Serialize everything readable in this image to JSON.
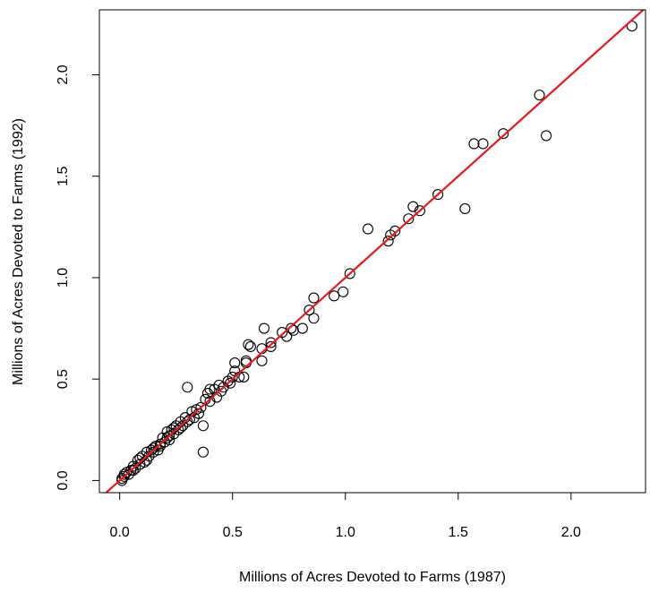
{
  "chart_data": {
    "type": "scatter",
    "title": "",
    "xlabel": "Millions of Acres Devoted to Farms (1987)",
    "ylabel": "Millions of Acres Devoted to Farms (1992)",
    "xlim": [
      -0.09,
      2.33
    ],
    "ylim": [
      -0.06,
      2.32
    ],
    "xticks": [
      0.0,
      0.5,
      1.0,
      1.5,
      2.0
    ],
    "xtick_labels": [
      "0.0",
      "0.5",
      "1.0",
      "1.5",
      "2.0"
    ],
    "yticks": [
      0.0,
      0.5,
      1.0,
      1.5,
      2.0
    ],
    "ytick_labels": [
      "0.0",
      "0.5",
      "1.0",
      "1.5",
      "2.0"
    ],
    "grid": false,
    "fit_line": {
      "intercept": 0.0,
      "slope": 1.0,
      "color": "#e41a1c"
    },
    "point_color": "#000000",
    "points": [
      [
        2.27,
        2.24
      ],
      [
        1.86,
        1.9
      ],
      [
        1.89,
        1.7
      ],
      [
        1.7,
        1.71
      ],
      [
        1.61,
        1.66
      ],
      [
        1.57,
        1.66
      ],
      [
        1.53,
        1.34
      ],
      [
        1.41,
        1.41
      ],
      [
        1.33,
        1.33
      ],
      [
        1.3,
        1.35
      ],
      [
        1.28,
        1.29
      ],
      [
        1.22,
        1.23
      ],
      [
        1.2,
        1.21
      ],
      [
        1.19,
        1.18
      ],
      [
        1.1,
        1.24
      ],
      [
        1.02,
        1.02
      ],
      [
        0.99,
        0.93
      ],
      [
        0.95,
        0.91
      ],
      [
        0.86,
        0.9
      ],
      [
        0.86,
        0.8
      ],
      [
        0.84,
        0.84
      ],
      [
        0.81,
        0.75
      ],
      [
        0.77,
        0.74
      ],
      [
        0.76,
        0.75
      ],
      [
        0.74,
        0.71
      ],
      [
        0.72,
        0.73
      ],
      [
        0.67,
        0.68
      ],
      [
        0.67,
        0.66
      ],
      [
        0.64,
        0.75
      ],
      [
        0.63,
        0.65
      ],
      [
        0.63,
        0.59
      ],
      [
        0.58,
        0.66
      ],
      [
        0.57,
        0.67
      ],
      [
        0.56,
        0.59
      ],
      [
        0.56,
        0.58
      ],
      [
        0.55,
        0.51
      ],
      [
        0.53,
        0.51
      ],
      [
        0.51,
        0.58
      ],
      [
        0.51,
        0.54
      ],
      [
        0.5,
        0.51
      ],
      [
        0.49,
        0.48
      ],
      [
        0.48,
        0.49
      ],
      [
        0.46,
        0.46
      ],
      [
        0.45,
        0.44
      ],
      [
        0.44,
        0.47
      ],
      [
        0.43,
        0.41
      ],
      [
        0.42,
        0.45
      ],
      [
        0.4,
        0.39
      ],
      [
        0.4,
        0.45
      ],
      [
        0.39,
        0.43
      ],
      [
        0.38,
        0.4
      ],
      [
        0.37,
        0.14
      ],
      [
        0.37,
        0.27
      ],
      [
        0.36,
        0.36
      ],
      [
        0.35,
        0.33
      ],
      [
        0.34,
        0.35
      ],
      [
        0.33,
        0.31
      ],
      [
        0.32,
        0.34
      ],
      [
        0.3,
        0.46
      ],
      [
        0.3,
        0.29
      ],
      [
        0.29,
        0.31
      ],
      [
        0.28,
        0.27
      ],
      [
        0.27,
        0.29
      ],
      [
        0.26,
        0.25
      ],
      [
        0.25,
        0.27
      ],
      [
        0.24,
        0.23
      ],
      [
        0.23,
        0.25
      ],
      [
        0.22,
        0.22
      ],
      [
        0.22,
        0.2
      ],
      [
        0.21,
        0.24
      ],
      [
        0.2,
        0.19
      ],
      [
        0.19,
        0.21
      ],
      [
        0.18,
        0.18
      ],
      [
        0.17,
        0.15
      ],
      [
        0.16,
        0.17
      ],
      [
        0.15,
        0.14
      ],
      [
        0.14,
        0.15
      ],
      [
        0.13,
        0.12
      ],
      [
        0.12,
        0.14
      ],
      [
        0.11,
        0.09
      ],
      [
        0.1,
        0.12
      ],
      [
        0.09,
        0.08
      ],
      [
        0.08,
        0.1
      ],
      [
        0.07,
        0.06
      ],
      [
        0.06,
        0.07
      ],
      [
        0.05,
        0.05
      ],
      [
        0.04,
        0.03
      ],
      [
        0.03,
        0.04
      ],
      [
        0.02,
        0.02
      ],
      [
        0.01,
        0.01
      ],
      [
        0.01,
        0.0
      ],
      [
        0.02,
        0.03
      ],
      [
        0.06,
        0.05
      ],
      [
        0.09,
        0.11
      ],
      [
        0.12,
        0.1
      ],
      [
        0.15,
        0.16
      ],
      [
        0.18,
        0.17
      ],
      [
        0.21,
        0.21
      ],
      [
        0.24,
        0.26
      ],
      [
        0.27,
        0.26
      ],
      [
        0.31,
        0.3
      ]
    ]
  }
}
